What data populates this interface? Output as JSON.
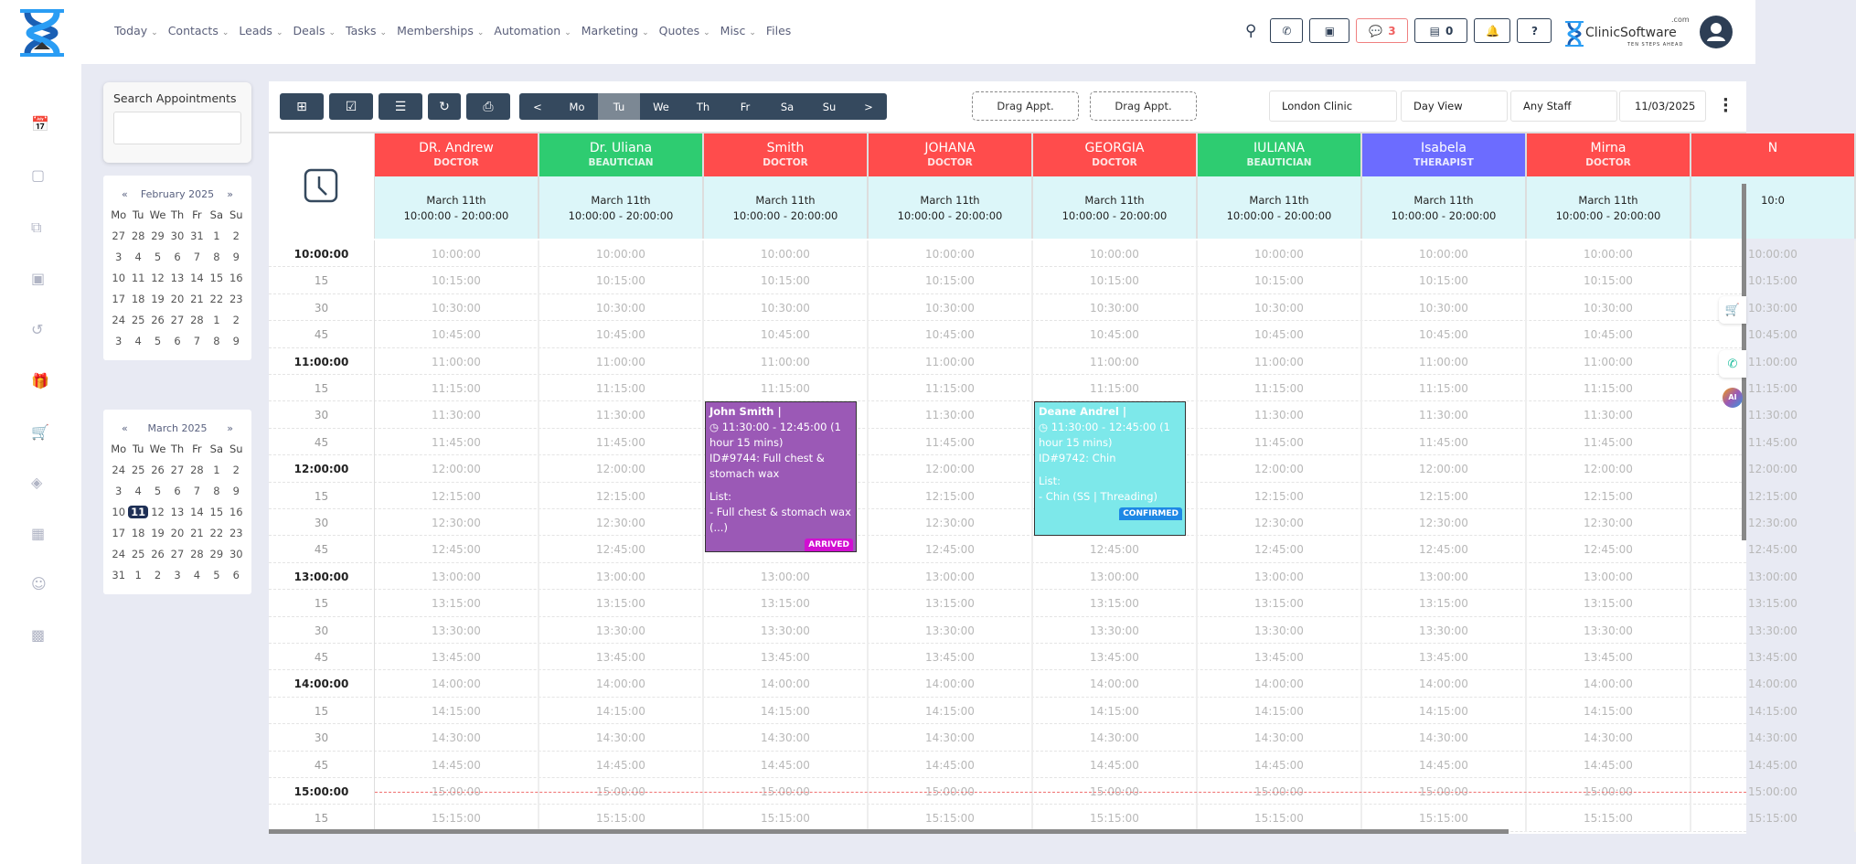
{
  "nav": [
    "Today",
    "Contacts",
    "Leads",
    "Deals",
    "Tasks",
    "Memberships",
    "Automation",
    "Marketing",
    "Quotes",
    "Misc",
    "Files"
  ],
  "nav_has_dropdown": [
    true,
    true,
    true,
    true,
    true,
    true,
    true,
    true,
    true,
    true,
    false
  ],
  "header": {
    "messages_count": "3",
    "store_count": "0",
    "brand": "ClinicSoftware",
    "brand_suffix": ".com",
    "brand_tagline": "TEN STEPS AHEAD"
  },
  "search": {
    "label": "Search Appointments",
    "value": ""
  },
  "calendars": [
    {
      "title": "February 2025",
      "prev": "«",
      "next": "»",
      "dow": [
        "Mo",
        "Tu",
        "We",
        "Th",
        "Fr",
        "Sa",
        "Su"
      ],
      "days": [
        "27",
        "28",
        "29",
        "30",
        "31",
        "1",
        "2",
        "3",
        "4",
        "5",
        "6",
        "7",
        "8",
        "9",
        "10",
        "11",
        "12",
        "13",
        "14",
        "15",
        "16",
        "17",
        "18",
        "19",
        "20",
        "21",
        "22",
        "23",
        "24",
        "25",
        "26",
        "27",
        "28",
        "1",
        "2",
        "3",
        "4",
        "5",
        "6",
        "7",
        "8",
        "9"
      ],
      "selected": -1
    },
    {
      "title": "March 2025",
      "prev": "«",
      "next": "»",
      "dow": [
        "Mo",
        "Tu",
        "We",
        "Th",
        "Fr",
        "Sa",
        "Su"
      ],
      "days": [
        "24",
        "25",
        "26",
        "27",
        "28",
        "1",
        "2",
        "3",
        "4",
        "5",
        "6",
        "7",
        "8",
        "9",
        "10",
        "11",
        "12",
        "13",
        "14",
        "15",
        "16",
        "17",
        "18",
        "19",
        "20",
        "21",
        "22",
        "23",
        "24",
        "25",
        "26",
        "27",
        "28",
        "29",
        "30",
        "31",
        "1",
        "2",
        "3",
        "4",
        "5",
        "6"
      ],
      "selected": 15
    }
  ],
  "toolbar": {
    "days": [
      "<",
      "Mo",
      "Tu",
      "We",
      "Th",
      "Fr",
      "Sa",
      "Su",
      ">"
    ],
    "active_day": "Tu",
    "drag1": "Drag Appt.",
    "drag2": "Drag Appt.",
    "location": "London Clinic",
    "view": "Day View",
    "staff": "Any Staff",
    "date": "11/03/2025"
  },
  "staff": [
    {
      "name": "DR. Andrew",
      "role": "DOCTOR",
      "color": "#ff4c4c",
      "date": "March 11th",
      "hours": "10:00:00 - 20:00:00"
    },
    {
      "name": "Dr. Uliana",
      "role": "BEAUTICIAN",
      "color": "#2ecc71",
      "date": "March 11th",
      "hours": "10:00:00 - 20:00:00"
    },
    {
      "name": "Smith",
      "role": "DOCTOR",
      "color": "#ff4c4c",
      "date": "March 11th",
      "hours": "10:00:00 - 20:00:00"
    },
    {
      "name": "JOHANA",
      "role": "DOCTOR",
      "color": "#ff4c4c",
      "date": "March 11th",
      "hours": "10:00:00 - 20:00:00"
    },
    {
      "name": "GEORGIA",
      "role": "DOCTOR",
      "color": "#ff4c4c",
      "date": "March 11th",
      "hours": "10:00:00 - 20:00:00"
    },
    {
      "name": "IULIANA",
      "role": "BEAUTICIAN",
      "color": "#2ecc71",
      "date": "March 11th",
      "hours": "10:00:00 - 20:00:00"
    },
    {
      "name": "Isabela",
      "role": "THERAPIST",
      "color": "#6c6cff",
      "date": "March 11th",
      "hours": "10:00:00 - 20:00:00"
    },
    {
      "name": "Mirna",
      "role": "DOCTOR",
      "color": "#ff4c4c",
      "date": "March 11th",
      "hours": "10:00:00 - 20:00:00"
    },
    {
      "name": "N",
      "role": "",
      "color": "#ff4c4c",
      "date": "",
      "hours": "10:0"
    }
  ],
  "slots": [
    {
      "label": "10:00:00",
      "time": "10:00:00",
      "hour": true
    },
    {
      "label": "15",
      "time": "10:15:00"
    },
    {
      "label": "30",
      "time": "10:30:00"
    },
    {
      "label": "45",
      "time": "10:45:00"
    },
    {
      "label": "11:00:00",
      "time": "11:00:00",
      "hour": true
    },
    {
      "label": "15",
      "time": "11:15:00"
    },
    {
      "label": "30",
      "time": "11:30:00"
    },
    {
      "label": "45",
      "time": "11:45:00"
    },
    {
      "label": "12:00:00",
      "time": "12:00:00",
      "hour": true
    },
    {
      "label": "15",
      "time": "12:15:00"
    },
    {
      "label": "30",
      "time": "12:30:00"
    },
    {
      "label": "45",
      "time": "12:45:00"
    },
    {
      "label": "13:00:00",
      "time": "13:00:00",
      "hour": true
    },
    {
      "label": "15",
      "time": "13:15:00"
    },
    {
      "label": "30",
      "time": "13:30:00"
    },
    {
      "label": "45",
      "time": "13:45:00"
    },
    {
      "label": "14:00:00",
      "time": "14:00:00",
      "hour": true
    },
    {
      "label": "15",
      "time": "14:15:00"
    },
    {
      "label": "30",
      "time": "14:30:00"
    },
    {
      "label": "45",
      "time": "14:45:00"
    },
    {
      "label": "15:00:00",
      "time": "15:00:00",
      "hour": true,
      "now": true
    },
    {
      "label": "15",
      "time": "15:15:00"
    }
  ],
  "appointments": [
    {
      "staff": "Smith",
      "start": "11:30:00",
      "client": "John Smith |",
      "time": "11:30:00 - 12:45:00 (1 hour 15 mins)",
      "id": "ID#9744: Full chest & stomach wax",
      "list_label": "List:",
      "list": "- Full chest & stomach wax (...)",
      "status": "ARRIVED",
      "color": "#9b59b6",
      "badge_color": "#d10fd1"
    },
    {
      "staff": "GEORGIA",
      "start": "11:30:00",
      "client": "Deane Andrel |",
      "time": "11:30:00 - 12:45:00 (1 hour 15 mins)",
      "id": "ID#9742: Chin",
      "list_label": "List:",
      "list": "- Chin (SS | Threading)",
      "status": "CONFIRMED",
      "color": "#7de8ea",
      "badge_color": "#1e88e5"
    }
  ]
}
